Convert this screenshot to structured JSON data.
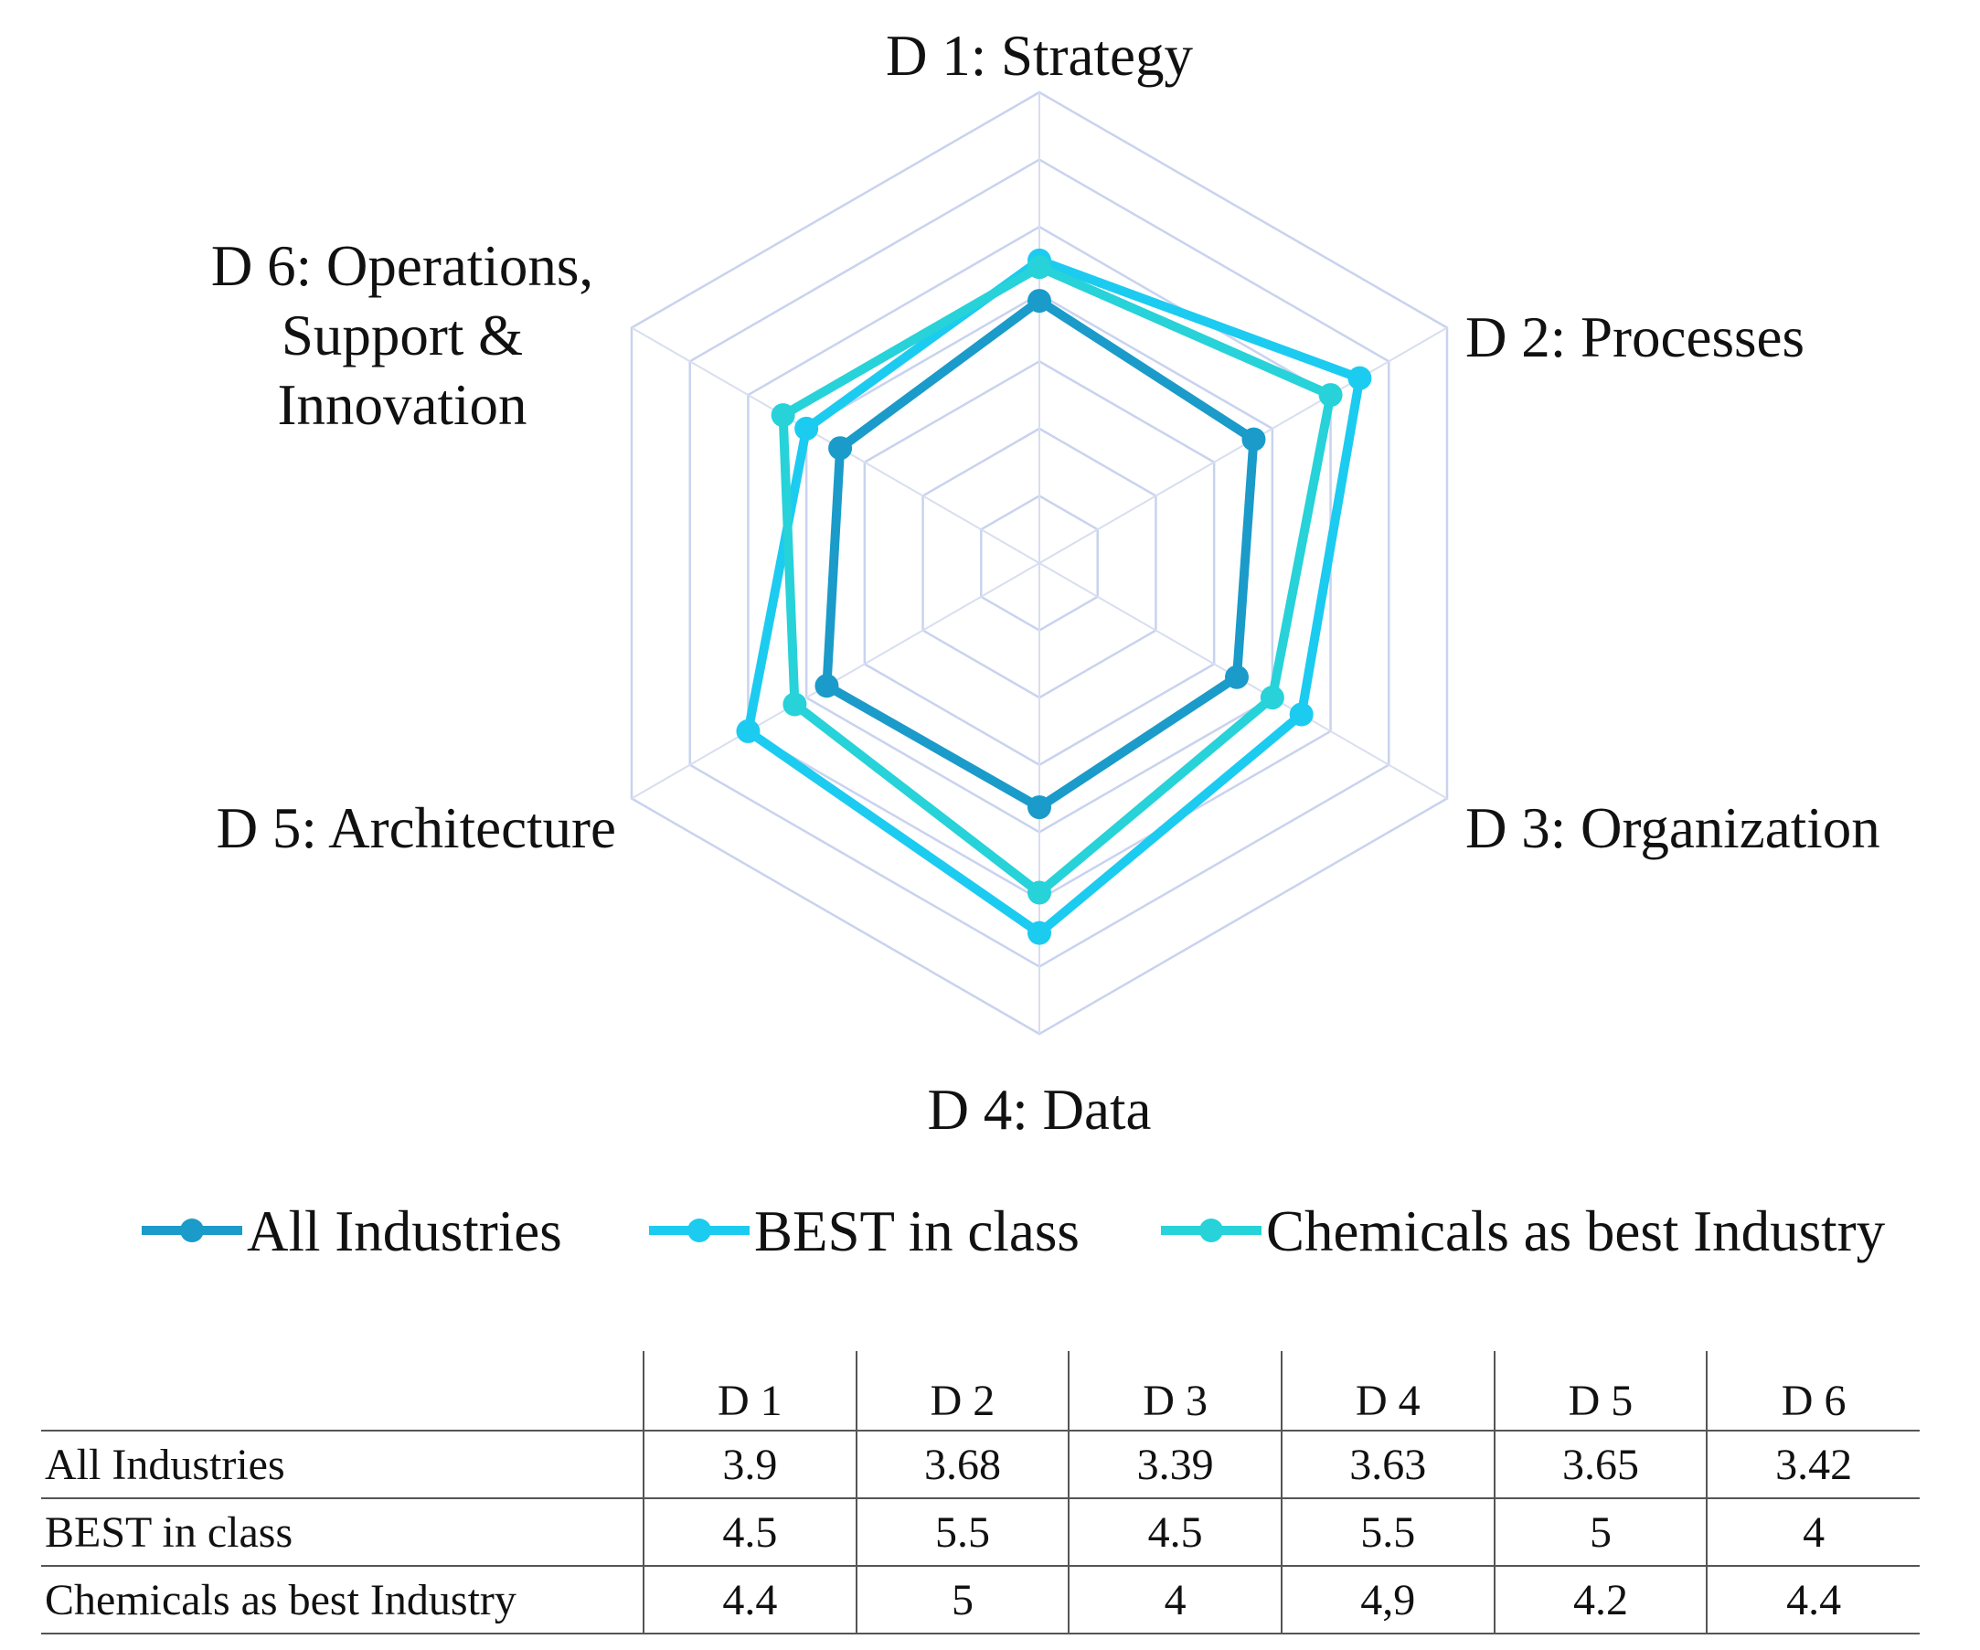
{
  "chart_data": {
    "type": "radar",
    "axes": [
      "D 1: Strategy",
      "D 2: Processes",
      "D 3: Organization",
      "D 4: Data",
      "D 5: Architecture",
      "D 6: Operations, Support & Innovation"
    ],
    "axis_label_lines": [
      [
        "D 1: Strategy"
      ],
      [
        "D 2: Processes"
      ],
      [
        "D 3: Organization"
      ],
      [
        "D 4: Data"
      ],
      [
        "D 5: Architecture"
      ],
      [
        "D 6: Operations,",
        "Support &",
        "Innovation"
      ]
    ],
    "rlim": [
      0,
      7
    ],
    "grid_rings": 7,
    "legend_position": "bottom",
    "series": [
      {
        "name": "All Industries",
        "color": "#1a9bc9",
        "values": [
          3.9,
          3.68,
          3.39,
          3.63,
          3.65,
          3.42
        ]
      },
      {
        "name": "BEST in class",
        "color": "#1ccbf0",
        "values": [
          4.5,
          5.5,
          4.5,
          5.5,
          5,
          4
        ]
      },
      {
        "name": "Chemicals as best Industry",
        "color": "#27d2d9",
        "values": [
          4.4,
          5,
          4,
          4.9,
          4.2,
          4.4
        ]
      }
    ]
  },
  "table": {
    "columns": [
      "D 1",
      "D 2",
      "D 3",
      "D 4",
      "D 5",
      "D 6"
    ],
    "rows": [
      {
        "label": "All Industries",
        "cells": [
          "3.9",
          "3.68",
          "3.39",
          "3.63",
          "3.65",
          "3.42"
        ]
      },
      {
        "label": "BEST in class",
        "cells": [
          "4.5",
          "5.5",
          "4.5",
          "5.5",
          "5",
          "4"
        ]
      },
      {
        "label": "Chemicals as best Industry",
        "cells": [
          "4.4",
          "5",
          "4",
          "4,9",
          "4.2",
          "4.4"
        ]
      }
    ]
  }
}
